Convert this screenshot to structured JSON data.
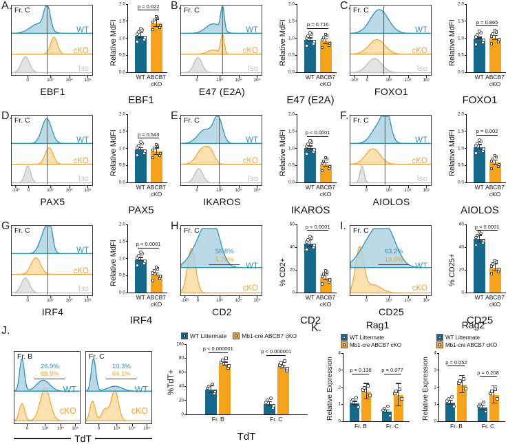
{
  "colors": {
    "wt": "#17698C",
    "cko": "#F5A21D",
    "wt_hist_stroke": "#2E93B9",
    "wt_hist_fill": "#AFD2E2",
    "cko_hist_stroke": "#F3A53A",
    "cko_hist_fill": "#FBDCA2",
    "iso_hist_stroke": "#BDBDBD",
    "iso_hist_fill": "#DEDEDE"
  },
  "chart_data": [
    {
      "panel": "A",
      "letter": "A.",
      "type": "bar",
      "title": "EBF1",
      "histogram": {
        "gate": "Fr. C",
        "xlabel": "EBF1",
        "labels": [
          "WT",
          "cKO",
          "Iso"
        ],
        "xticks": [
          "0",
          "10³",
          "10⁴",
          "10⁵"
        ],
        "vline": 0.44,
        "curves": {
          "wt": [
            [
              0.33,
              0.1,
              0.38
            ],
            [
              0.44,
              0.038,
              1
            ]
          ],
          "cko": [
            [
              0.525,
              0.042,
              0.82
            ]
          ],
          "iso": [
            [
              0.17,
              0.05,
              0.85
            ]
          ]
        }
      },
      "bar": {
        "ylabel": "Relative MdFI",
        "yticks": [
          "0.0",
          "0.5",
          "1.0",
          "1.5",
          "2.0"
        ],
        "ymax": 2,
        "categories": [
          "WT",
          "ABCB7\ncKO"
        ],
        "values": [
          1.08,
          1.43
        ],
        "errors": [
          0.08,
          0.1
        ],
        "p": "p = 0.022"
      }
    },
    {
      "panel": "B",
      "letter": "B.",
      "type": "bar",
      "title": "E47 (E2A)",
      "histogram": {
        "gate": "Fr. C",
        "xlabel": "E47 (E2A)",
        "labels": [
          "WT",
          "cKO",
          "Iso"
        ],
        "xticks": [
          "0",
          "10³",
          "10⁴",
          "10⁵"
        ],
        "vline": 0.515,
        "curves": {
          "wt": [
            [
              0.4,
              0.09,
              0.38
            ],
            [
              0.515,
              0.021,
              1
            ]
          ],
          "cko": [
            [
              0.515,
              0.021,
              0.95
            ],
            [
              0.4,
              0.07,
              0.2
            ]
          ],
          "iso": [
            [
              0.21,
              0.05,
              0.8
            ]
          ]
        }
      },
      "bar": {
        "ylabel": "Relative MdFI",
        "yticks": [
          "0.0",
          "0.5",
          "1.0",
          "1.5",
          "2.0"
        ],
        "ymax": 2,
        "categories": [
          "WT",
          "ABCB7\ncKO"
        ],
        "values": [
          0.95,
          0.9
        ],
        "errors": [
          0.05,
          0.07
        ],
        "p": "p = 0.716"
      }
    },
    {
      "panel": "C",
      "letter": "C.",
      "type": "bar",
      "title": "FOXO1",
      "histogram": {
        "gate": "Fr. C",
        "xlabel": "FOXO1",
        "labels": [
          "WT",
          "cKO",
          "Iso"
        ],
        "xticks": [
          "-10³",
          "0",
          "10³",
          "10⁴",
          "10⁵"
        ],
        "vline": 0.415,
        "curves": {
          "wt": [
            [
              0.36,
              0.11,
              0.95
            ]
          ],
          "cko": [
            [
              0.33,
              0.1,
              0.7
            ]
          ],
          "iso": [
            [
              0.3,
              0.09,
              0.75
            ]
          ]
        }
      },
      "bar": {
        "ylabel": "Relative MdFI",
        "yticks": [
          "0.0",
          "0.5",
          "1.0",
          "1.5",
          "2.0"
        ],
        "ymax": 2,
        "categories": [
          "WT",
          "ABCB7\ncKO"
        ],
        "values": [
          1.0,
          1.01
        ],
        "errors": [
          0.02,
          0.06
        ],
        "p": "p = 0.865"
      }
    },
    {
      "panel": "D",
      "letter": "D.",
      "type": "bar",
      "title": "PAX5",
      "histogram": {
        "gate": "Fr. C",
        "xlabel": "PAX5",
        "labels": [
          "WT",
          "cKO",
          "Iso"
        ],
        "xticks": [
          "-10³",
          "0",
          "10³",
          "10⁴",
          "10⁵"
        ],
        "vline": 0.44,
        "curves": {
          "wt": [
            [
              0.435,
              0.06,
              1
            ]
          ],
          "cko": [
            [
              0.465,
              0.05,
              0.8
            ]
          ],
          "iso": [
            [
              0.2,
              0.035,
              0.9
            ]
          ]
        }
      },
      "bar": {
        "ylabel": "Relative MdFI",
        "yticks": [
          "0.0",
          "0.5",
          "1.0",
          "1.5",
          "2.0"
        ],
        "ymax": 2,
        "categories": [
          "WT",
          "ABCB7\ncKO"
        ],
        "values": [
          0.98,
          0.9
        ],
        "errors": [
          0.03,
          0.1
        ],
        "p": "p = 0.543"
      }
    },
    {
      "panel": "E",
      "letter": "E.",
      "type": "bar",
      "title": "IKAROS",
      "histogram": {
        "gate": "Fr. C",
        "xlabel": "IKAROS",
        "labels": [
          "WT",
          "cKO",
          "Iso"
        ],
        "xticks": [
          "0",
          "10³",
          "10⁴",
          "10⁵"
        ],
        "vline": 0.475,
        "curves": {
          "wt": [
            [
              0.3,
              0.09,
              0.55
            ],
            [
              0.46,
              0.055,
              1
            ]
          ],
          "cko": [
            [
              0.27,
              0.075,
              0.75
            ],
            [
              0.37,
              0.05,
              0.45
            ]
          ],
          "iso": [
            [
              0.22,
              0.05,
              0.75
            ]
          ]
        }
      },
      "bar": {
        "ylabel": "Relative MdFI",
        "yticks": [
          "0.0",
          "0.5",
          "1.0",
          "1.5",
          "2.0"
        ],
        "ymax": 2,
        "categories": [
          "WT",
          "ABCB7\ncKO"
        ],
        "values": [
          1.02,
          0.52
        ],
        "errors": [
          0.04,
          0.05
        ],
        "p": "p < 0.0001"
      }
    },
    {
      "panel": "F",
      "letter": "F.",
      "type": "bar",
      "title": "AIOLOS",
      "histogram": {
        "gate": "Fr. C",
        "xlabel": "AIOLOS",
        "labels": [
          "WT",
          "cKO",
          "Iso"
        ],
        "xticks": [
          "0",
          "10³",
          "10⁴",
          "10⁵"
        ],
        "vline": 0.43,
        "curves": {
          "wt": [
            [
              0.36,
              0.09,
              0.75
            ],
            [
              0.45,
              0.05,
              0.95
            ]
          ],
          "cko": [
            [
              0.28,
              0.09,
              0.75
            ]
          ],
          "iso": [
            [
              0.145,
              0.025,
              0.9
            ]
          ]
        }
      },
      "bar": {
        "ylabel": "Relative MdFI",
        "yticks": [
          "0.0",
          "0.5",
          "1.0",
          "1.5",
          "2.0"
        ],
        "ymax": 2,
        "categories": [
          "WT",
          "ABCB7\ncKO"
        ],
        "values": [
          1.03,
          0.58
        ],
        "errors": [
          0.07,
          0.06
        ],
        "p": "p = 0.002"
      }
    },
    {
      "panel": "G",
      "letter": "G.",
      "type": "bar",
      "title": "IRF4",
      "histogram": {
        "gate": "Fr. C",
        "xlabel": "IRF4",
        "labels": [
          "WT",
          "cKO",
          "Iso"
        ],
        "xticks": [
          "0",
          "10³",
          "10⁴",
          "10⁵"
        ],
        "vline": 0.445,
        "curves": {
          "wt": [
            [
              0.41,
              0.06,
              0.85
            ],
            [
              0.47,
              0.035,
              0.95
            ]
          ],
          "cko": [
            [
              0.3,
              0.06,
              0.8
            ]
          ],
          "iso": [
            [
              0.17,
              0.05,
              0.8
            ]
          ]
        }
      },
      "bar": {
        "ylabel": "Relative MdFI",
        "yticks": [
          "0.0",
          "0.5",
          "1.0",
          "1.5",
          "2.0"
        ],
        "ymax": 2,
        "categories": [
          "WT",
          "ABCB7\ncKO"
        ],
        "values": [
          0.97,
          0.53
        ],
        "errors": [
          0.05,
          0.03
        ],
        "p": "p < 0.0001"
      }
    },
    {
      "panel": "H",
      "letter": "H.",
      "type": "bar",
      "title": "CD2",
      "histogram": {
        "gate": "Fr. C",
        "xlabel": "CD2",
        "labels": [
          "WT",
          "cKO"
        ],
        "pct": [
          "56.8%",
          "5.70%"
        ],
        "xticks": [
          "-10³",
          "0",
          "10³",
          "10⁴",
          "10⁵"
        ],
        "curves": {
          "wt": [
            [
              0.28,
              0.13,
              0.85
            ],
            [
              0.4,
              0.09,
              0.8
            ]
          ],
          "cko": [
            [
              0.13,
              0.05,
              1
            ]
          ]
        }
      },
      "bar": {
        "ylabel": "% CD2+",
        "yticks": [
          "0",
          "20",
          "40",
          "60"
        ],
        "ymax": 60,
        "categories": [
          "WT",
          "ABCB7\ncKO"
        ],
        "values": [
          43,
          13
        ],
        "errors": [
          3,
          2
        ],
        "p": "p < 0.0001"
      }
    },
    {
      "panel": "I",
      "letter": "I.",
      "type": "bar",
      "title": "CD25",
      "histogram": {
        "gate": "Fr. C",
        "xlabel": "CD25",
        "labels": [
          "WT",
          "cKO"
        ],
        "pct": [
          "63.2%",
          "19.0%"
        ],
        "xticks": [
          "0",
          "10³",
          "10⁴",
          "10⁵"
        ],
        "curves": {
          "wt": [
            [
              0.28,
              0.15,
              0.8
            ],
            [
              0.46,
              0.12,
              0.78
            ]
          ],
          "cko": [
            [
              0.115,
              0.05,
              1
            ],
            [
              0.28,
              0.1,
              0.18
            ]
          ]
        }
      },
      "bar": {
        "ylabel": "% CD25+",
        "yticks": [
          "0",
          "20",
          "40",
          "60"
        ],
        "ymax": 60,
        "categories": [
          "WT",
          "ABCB7\ncKO"
        ],
        "values": [
          47,
          22
        ],
        "errors": [
          3,
          3
        ],
        "p": "p < 0.0001"
      }
    },
    {
      "panel": "J",
      "letter": "J.",
      "type": "bar",
      "title": "TdT",
      "xlabel_shared": "TdT",
      "histograms": [
        {
          "gate": "Fr. B",
          "labels": [
            "WT",
            "cKO"
          ],
          "pct": [
            "26.9%",
            "68.9%"
          ],
          "xticks": [
            "0",
            "10³",
            "10⁴",
            "10⁵"
          ],
          "curves": {
            "wt": [
              [
                0.115,
                0.035,
                1
              ],
              [
                0.44,
                0.1,
                0.33
              ]
            ],
            "cko": [
              [
                0.115,
                0.04,
                0.42
              ],
              [
                0.47,
                0.075,
                0.8
              ]
            ]
          }
        },
        {
          "gate": "Fr. C",
          "labels": [
            "WT",
            "cKO"
          ],
          "pct": [
            "10.3%",
            "64.1%"
          ],
          "xticks": [
            "0",
            "10³",
            "10⁴",
            "10⁵"
          ],
          "curves": {
            "wt": [
              [
                0.115,
                0.035,
                1
              ],
              [
                0.44,
                0.11,
                0.15
              ]
            ],
            "cko": [
              [
                0.1,
                0.04,
                0.48
              ],
              [
                0.29,
                0.05,
                0.28
              ],
              [
                0.44,
                0.055,
                0.75
              ]
            ]
          }
        }
      ],
      "bar": {
        "legend": [
          "WT Littermate",
          "Mb1-cre ABCB7 cKO"
        ],
        "ylabel": "%TdT+",
        "yticks": [
          "0",
          "20",
          "40",
          "60",
          "80",
          "100"
        ],
        "ymax": 100,
        "categories": [
          "Fr. B",
          "Fr. C"
        ],
        "series": [
          {
            "name": "WT Littermate",
            "values": [
              35,
              15
            ],
            "errors": [
              5,
              3
            ]
          },
          {
            "name": "Mb1-cre ABCB7 cKO",
            "values": [
              72,
              68
            ],
            "errors": [
              2,
              2
            ]
          }
        ],
        "p": [
          "p < 0.000001",
          "p < 0.000001"
        ],
        "xlabel": "TdT"
      }
    },
    {
      "panel": "K",
      "letter": "K.",
      "type": "bar",
      "charts": [
        {
          "title": "Rag1",
          "legend": [
            "WT Littermate",
            "Mb1-cre ABCB7 cKO"
          ],
          "ylabel": "Relative Expression",
          "yticks": [
            "0",
            "1",
            "2",
            "3",
            "4"
          ],
          "ymax": 4,
          "categories": [
            "Fr. B",
            "Fr. C"
          ],
          "series": [
            {
              "name": "WT Littermate",
              "values": [
                1.05,
                0.55
              ],
              "errors": [
                0.1,
                0.08
              ]
            },
            {
              "name": "Mb1-cre ABCB7 cKO",
              "values": [
                1.75,
                1.55
              ],
              "errors": [
                0.45,
                0.65
              ]
            }
          ],
          "p": [
            "p = 0.138",
            "p = 0.077"
          ]
        },
        {
          "title": "Rag2",
          "legend": [
            "WT Littermate",
            "Mb1-cre ABCB7 cKO"
          ],
          "ylabel": "Relative Expression",
          "yticks": [
            "0",
            "1",
            "2",
            "3",
            "4"
          ],
          "ymax": 4,
          "categories": [
            "Fr. B",
            "Fr. C"
          ],
          "series": [
            {
              "name": "WT Littermate",
              "values": [
                1.1,
                0.8
              ],
              "errors": [
                0.12,
                0.12
              ]
            },
            {
              "name": "Mb1-cre ABCB7 cKO",
              "values": [
                2.15,
                1.55
              ],
              "errors": [
                0.5,
                0.5
              ]
            }
          ],
          "p": [
            "p = 0.052",
            "p = 0.208"
          ]
        }
      ]
    }
  ]
}
